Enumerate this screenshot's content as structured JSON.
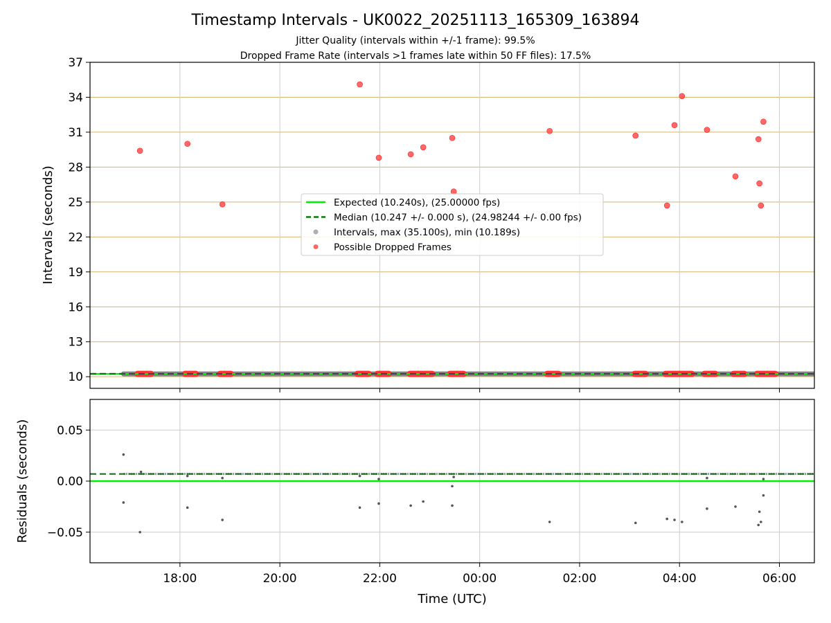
{
  "figure": {
    "title": "Timestamp Intervals - UK0022_20251113_165309_163894",
    "subtitle_line1": "Jitter Quality (intervals within +/-1 frame): 99.5%",
    "subtitle_line2": "Dropped Frame Rate (intervals >1 frames late within 50 FF files): 17.5%"
  },
  "chart_data": [
    {
      "type": "scatter",
      "panel": "intervals",
      "ylabel": "Intervals (seconds)",
      "xlabel": "",
      "ylim": [
        9,
        37
      ],
      "yticks": [
        10,
        13,
        16,
        19,
        22,
        25,
        28,
        31,
        34,
        37
      ],
      "ytick_labels": [
        "10",
        "13",
        "16",
        "19",
        "22",
        "25",
        "28",
        "31",
        "34",
        "37"
      ],
      "xticks": [
        "18:00",
        "20:00",
        "22:00",
        "00:00",
        "02:00",
        "04:00",
        "06:00"
      ],
      "xlim_hours": [
        16.2,
        30.7
      ],
      "grid": {
        "horizontal": true,
        "vertical": true,
        "horizontal_color": "#d4b46a",
        "vertical_color": "#cccccc"
      },
      "legend_position": "center",
      "legend": [
        {
          "label": "Expected (10.240s), (25.00000 fps)",
          "kind": "line",
          "color": "#00ee00"
        },
        {
          "label": "Median (10.247 +/- 0.000 s), (24.98244 +/- 0.00 fps)",
          "kind": "dashed-line",
          "color": "#007f00"
        },
        {
          "label": "Intervals, max (35.100s), min (10.189s)",
          "kind": "dot",
          "color": "#8c8c8c"
        },
        {
          "label": "Possible Dropped Frames",
          "kind": "dot",
          "color": "#ff4d4d"
        }
      ],
      "expected_value": 10.24,
      "median_value": 10.247,
      "intervals_band": {
        "x_start": 16.87,
        "x_end": 30.7,
        "y": 10.24
      },
      "dropped_frames_high": [
        {
          "x": 17.2,
          "y": 29.4
        },
        {
          "x": 18.15,
          "y": 30.0
        },
        {
          "x": 18.85,
          "y": 24.8
        },
        {
          "x": 21.6,
          "y": 35.1
        },
        {
          "x": 21.98,
          "y": 28.8
        },
        {
          "x": 22.62,
          "y": 29.1
        },
        {
          "x": 22.87,
          "y": 29.7
        },
        {
          "x": 23.45,
          "y": 30.5
        },
        {
          "x": 23.48,
          "y": 25.9
        },
        {
          "x": 25.4,
          "y": 31.1
        },
        {
          "x": 27.12,
          "y": 30.7
        },
        {
          "x": 27.75,
          "y": 24.7
        },
        {
          "x": 27.9,
          "y": 31.6
        },
        {
          "x": 28.05,
          "y": 34.1
        },
        {
          "x": 28.55,
          "y": 31.2
        },
        {
          "x": 29.12,
          "y": 27.2
        },
        {
          "x": 29.58,
          "y": 30.4
        },
        {
          "x": 29.6,
          "y": 26.6
        },
        {
          "x": 29.63,
          "y": 24.7
        },
        {
          "x": 29.68,
          "y": 31.9
        }
      ],
      "dropped_frames_base": [
        {
          "x_start": 17.15,
          "x_end": 17.42
        },
        {
          "x_start": 18.1,
          "x_end": 18.32
        },
        {
          "x_start": 18.8,
          "x_end": 19.02
        },
        {
          "x_start": 21.55,
          "x_end": 21.78
        },
        {
          "x_start": 21.95,
          "x_end": 22.18
        },
        {
          "x_start": 22.6,
          "x_end": 22.82
        },
        {
          "x_start": 22.83,
          "x_end": 23.05
        },
        {
          "x_start": 23.4,
          "x_end": 23.68
        },
        {
          "x_start": 25.35,
          "x_end": 25.58
        },
        {
          "x_start": 27.1,
          "x_end": 27.32
        },
        {
          "x_start": 27.72,
          "x_end": 28.25
        },
        {
          "x_start": 28.5,
          "x_end": 28.72
        },
        {
          "x_start": 29.08,
          "x_end": 29.3
        },
        {
          "x_start": 29.55,
          "x_end": 29.92
        }
      ]
    },
    {
      "type": "scatter",
      "panel": "residuals",
      "ylabel": "Residuals (seconds)",
      "xlabel": "Time (UTC)",
      "ylim": [
        -0.08,
        0.08
      ],
      "yticks": [
        -0.05,
        0.0,
        0.05
      ],
      "ytick_labels": [
        "−0.05",
        "0.00",
        "0.05"
      ],
      "xticks": [
        "18:00",
        "20:00",
        "22:00",
        "00:00",
        "02:00",
        "04:00",
        "06:00"
      ],
      "xlim_hours": [
        16.2,
        30.7
      ],
      "grid": {
        "horizontal": true,
        "vertical": true,
        "color": "#cccccc"
      },
      "expected_residual": 0.0,
      "median_residual": 0.007,
      "residual_band": {
        "x_start": 16.87,
        "x_end": 30.7,
        "y": 0.007
      },
      "points": [
        {
          "x": 16.87,
          "y": 0.026
        },
        {
          "x": 16.87,
          "y": -0.021
        },
        {
          "x": 17.2,
          "y": -0.05
        },
        {
          "x": 17.22,
          "y": 0.009
        },
        {
          "x": 18.15,
          "y": -0.026
        },
        {
          "x": 18.15,
          "y": 0.005
        },
        {
          "x": 18.85,
          "y": -0.038
        },
        {
          "x": 18.85,
          "y": 0.003
        },
        {
          "x": 21.6,
          "y": -0.026
        },
        {
          "x": 21.6,
          "y": 0.005
        },
        {
          "x": 21.98,
          "y": -0.022
        },
        {
          "x": 21.98,
          "y": 0.002
        },
        {
          "x": 22.62,
          "y": -0.024
        },
        {
          "x": 22.87,
          "y": -0.02
        },
        {
          "x": 23.45,
          "y": -0.024
        },
        {
          "x": 23.45,
          "y": -0.005
        },
        {
          "x": 23.48,
          "y": 0.004
        },
        {
          "x": 25.4,
          "y": -0.04
        },
        {
          "x": 27.12,
          "y": -0.041
        },
        {
          "x": 27.75,
          "y": -0.037
        },
        {
          "x": 27.9,
          "y": -0.038
        },
        {
          "x": 28.05,
          "y": -0.04
        },
        {
          "x": 28.55,
          "y": -0.027
        },
        {
          "x": 28.55,
          "y": 0.003
        },
        {
          "x": 29.12,
          "y": -0.025
        },
        {
          "x": 29.58,
          "y": -0.043
        },
        {
          "x": 29.6,
          "y": -0.03
        },
        {
          "x": 29.63,
          "y": -0.04
        },
        {
          "x": 29.68,
          "y": -0.014
        },
        {
          "x": 29.68,
          "y": 0.002
        }
      ]
    }
  ]
}
